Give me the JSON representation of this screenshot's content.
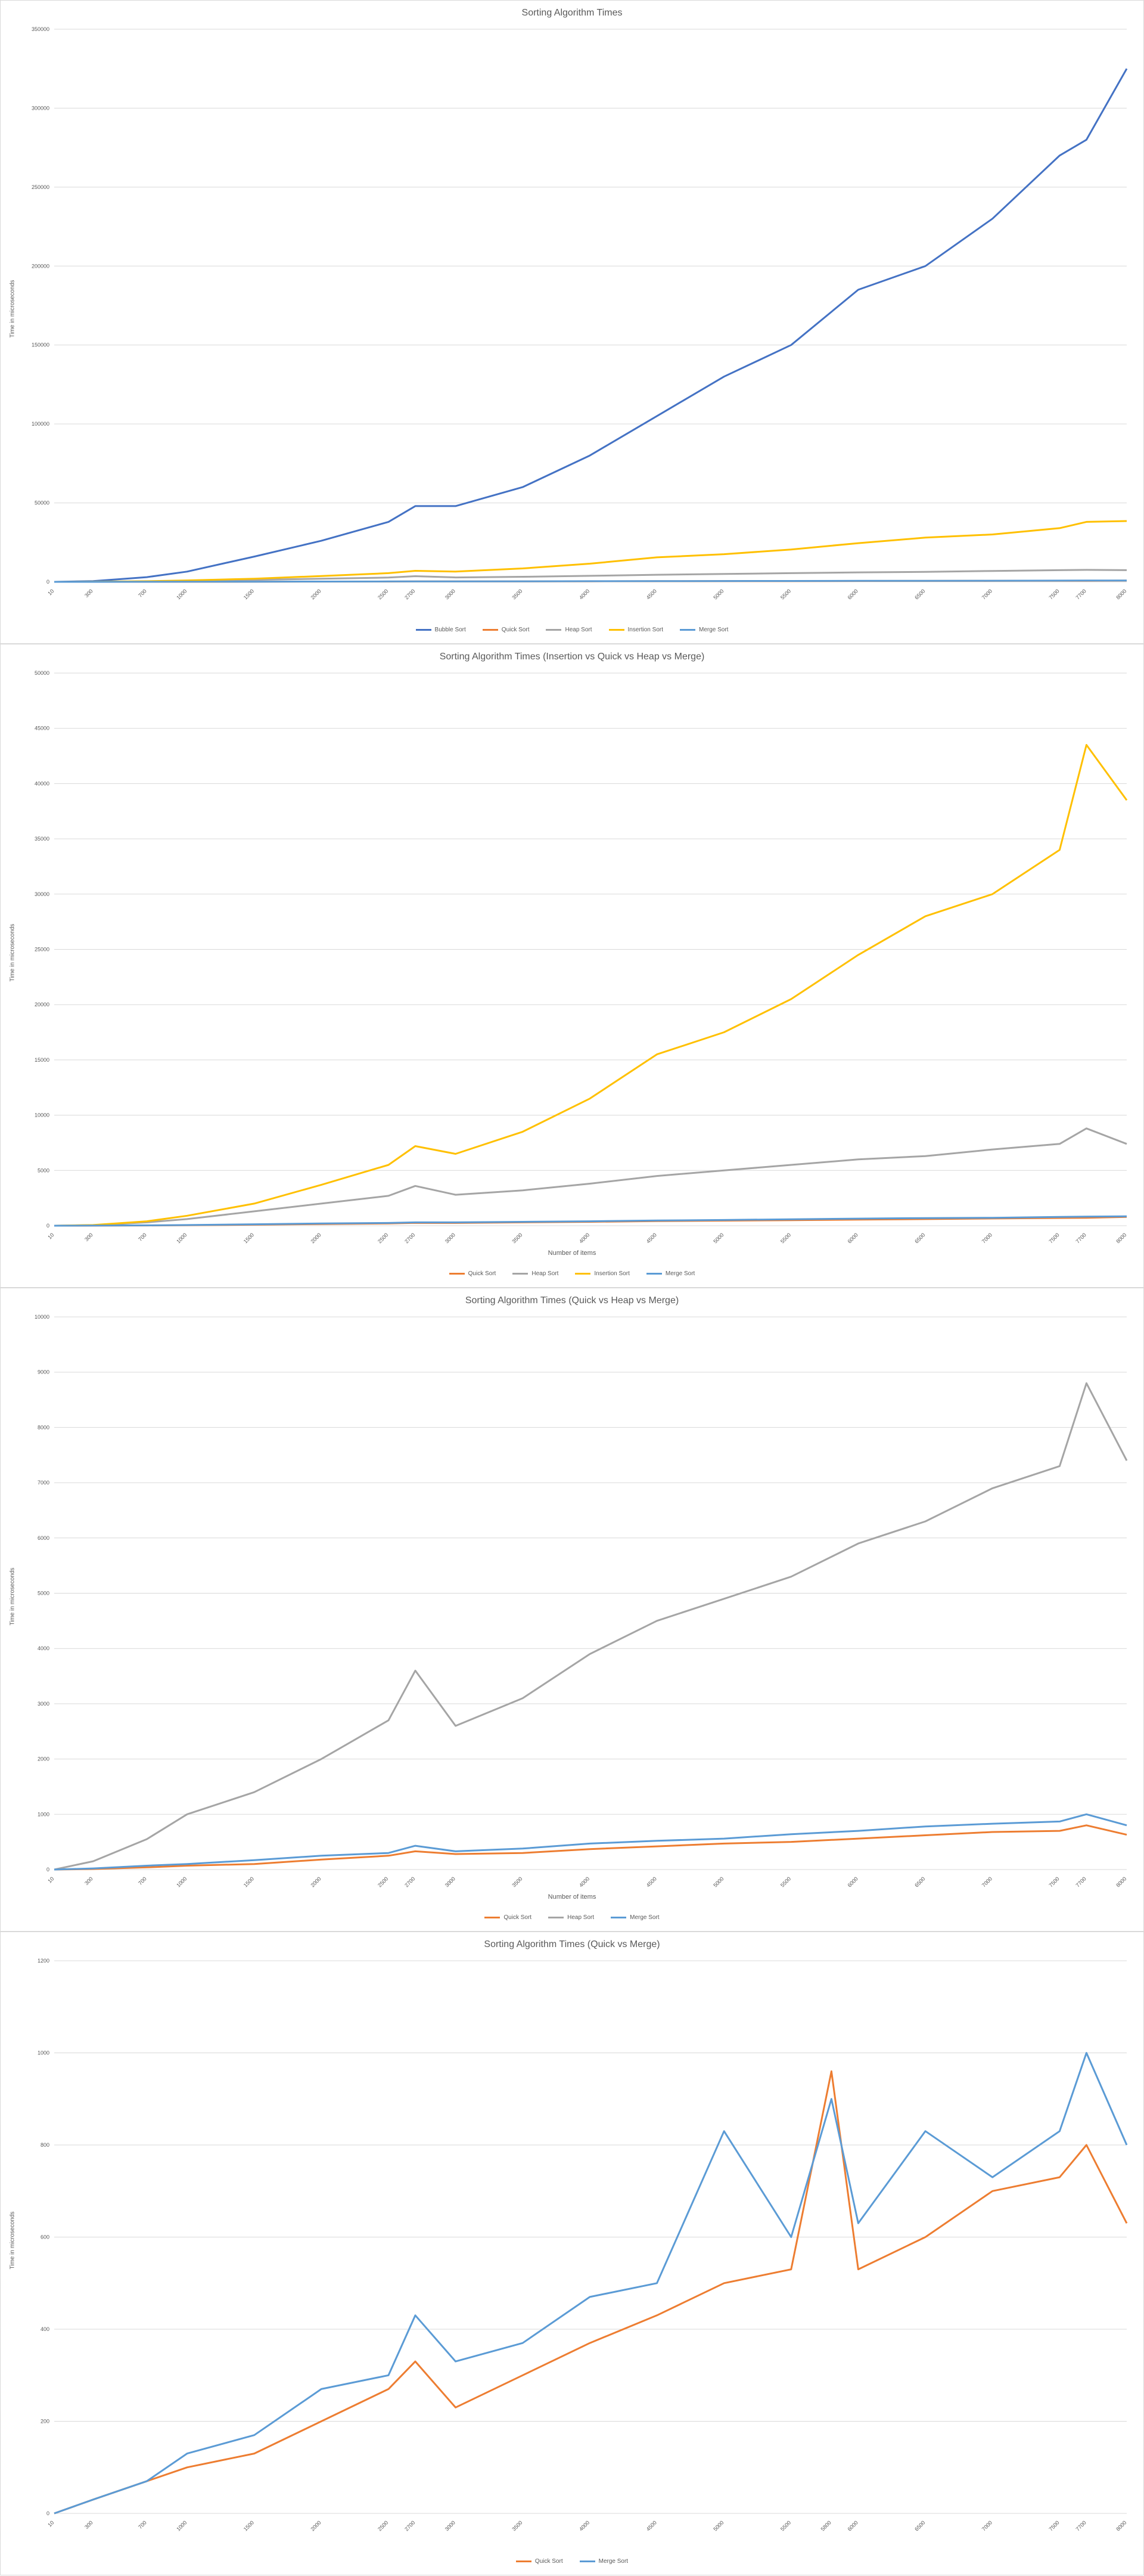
{
  "colors": {
    "bubble": "#4472c4",
    "quick": "#ed7d31",
    "heap": "#a5a5a5",
    "insertion": "#ffc000",
    "merge": "#5b9bd5",
    "grid": "#d9d9d9",
    "axis_text": "#595959"
  },
  "chart_data": [
    {
      "type": "line",
      "title": "Sorting Algorithm Times",
      "xlabel": "",
      "ylabel": "Time in microseconds",
      "ylim": [
        0,
        350000
      ],
      "yticks": [
        0,
        50000,
        100000,
        150000,
        200000,
        250000,
        300000,
        350000
      ],
      "x": [
        10,
        300,
        700,
        1000,
        1500,
        2000,
        2500,
        2700,
        3000,
        3500,
        4000,
        4500,
        5000,
        5500,
        6000,
        6500,
        7000,
        7500,
        7700,
        8000
      ],
      "series": [
        {
          "name": "Bubble Sort",
          "color_key": "bubble",
          "values": [
            0,
            500,
            3000,
            6500,
            16000,
            26000,
            38000,
            48000,
            48000,
            60000,
            80000,
            105000,
            130000,
            150000,
            185000,
            200000,
            230000,
            270000,
            280000,
            325000
          ]
        },
        {
          "name": "Quick Sort",
          "color_key": "quick",
          "values": [
            0,
            5,
            20,
            40,
            90,
            150,
            200,
            260,
            250,
            300,
            350,
            420,
            460,
            500,
            550,
            600,
            650,
            700,
            720,
            800
          ]
        },
        {
          "name": "Heap Sort",
          "color_key": "heap",
          "values": [
            0,
            50,
            300,
            600,
            1300,
            2000,
            2700,
            3600,
            2800,
            3200,
            3800,
            4500,
            5000,
            5500,
            6000,
            6300,
            6900,
            7400,
            7600,
            7400
          ]
        },
        {
          "name": "Insertion Sort",
          "color_key": "insertion",
          "values": [
            0,
            60,
            400,
            900,
            2000,
            3700,
            5500,
            7000,
            6500,
            8500,
            11500,
            15500,
            17500,
            20500,
            24500,
            28000,
            30000,
            34000,
            38000,
            38500
          ]
        },
        {
          "name": "Merge Sort",
          "color_key": "merge",
          "values": [
            0,
            10,
            30,
            60,
            130,
            200,
            250,
            300,
            300,
            350,
            400,
            470,
            520,
            580,
            640,
            690,
            720,
            800,
            820,
            850
          ]
        }
      ],
      "xlabels_shown": true
    },
    {
      "type": "line",
      "title": "Sorting Algorithm Times (Insertion vs Quick vs Heap vs Merge)",
      "xlabel": "Number of items",
      "ylabel": "Time in microseconds",
      "ylim": [
        0,
        50000
      ],
      "yticks": [
        0,
        5000,
        10000,
        15000,
        20000,
        25000,
        30000,
        35000,
        40000,
        45000,
        50000
      ],
      "x": [
        10,
        300,
        700,
        1000,
        1500,
        2000,
        2500,
        2700,
        3000,
        3500,
        4000,
        4500,
        5000,
        5500,
        6000,
        6500,
        7000,
        7500,
        7700,
        8000
      ],
      "series": [
        {
          "name": "Quick Sort",
          "color_key": "quick",
          "values": [
            0,
            5,
            20,
            40,
            90,
            150,
            200,
            260,
            250,
            300,
            350,
            420,
            460,
            500,
            550,
            600,
            650,
            700,
            720,
            800
          ]
        },
        {
          "name": "Heap Sort",
          "color_key": "heap",
          "values": [
            0,
            50,
            300,
            600,
            1300,
            2000,
            2700,
            3600,
            2800,
            3200,
            3800,
            4500,
            5000,
            5500,
            6000,
            6300,
            6900,
            7400,
            8800,
            7400
          ]
        },
        {
          "name": "Insertion Sort",
          "color_key": "insertion",
          "values": [
            0,
            60,
            400,
            900,
            2000,
            3700,
            5500,
            7200,
            6500,
            8500,
            11500,
            15500,
            17500,
            20500,
            24500,
            28000,
            30000,
            34000,
            43500,
            38500
          ]
        },
        {
          "name": "Merge Sort",
          "color_key": "merge",
          "values": [
            0,
            10,
            30,
            60,
            130,
            200,
            250,
            300,
            300,
            350,
            400,
            470,
            520,
            580,
            640,
            690,
            720,
            800,
            820,
            850
          ]
        }
      ]
    },
    {
      "type": "line",
      "title": "Sorting Algorithm Times (Quick vs Heap vs Merge)",
      "xlabel": "Number of items",
      "ylabel": "Time in microseconds",
      "ylim": [
        0,
        10000
      ],
      "yticks": [
        0,
        1000,
        2000,
        3000,
        4000,
        5000,
        6000,
        7000,
        8000,
        9000,
        10000
      ],
      "x": [
        10,
        300,
        700,
        1000,
        1500,
        2000,
        2500,
        2700,
        3000,
        3500,
        4000,
        4500,
        5000,
        5500,
        6000,
        6500,
        7000,
        7500,
        7700,
        8000
      ],
      "series": [
        {
          "name": "Quick Sort",
          "color_key": "quick",
          "values": [
            0,
            10,
            40,
            70,
            100,
            180,
            250,
            330,
            280,
            300,
            370,
            420,
            470,
            500,
            560,
            620,
            680,
            700,
            800,
            630
          ]
        },
        {
          "name": "Heap Sort",
          "color_key": "heap",
          "values": [
            0,
            150,
            550,
            1000,
            1400,
            2000,
            2700,
            3600,
            2600,
            3100,
            3900,
            4500,
            4900,
            5300,
            5900,
            6300,
            6900,
            7300,
            8800,
            7400
          ]
        },
        {
          "name": "Merge Sort",
          "color_key": "merge",
          "values": [
            0,
            20,
            70,
            100,
            170,
            250,
            300,
            430,
            330,
            380,
            470,
            520,
            560,
            640,
            700,
            780,
            830,
            870,
            1000,
            800
          ]
        }
      ]
    },
    {
      "type": "line",
      "title": "Sorting Algorithm Times (Quick vs Merge)",
      "xlabel": "",
      "ylabel": "Time in microseconds",
      "ylim": [
        0,
        1200
      ],
      "yticks": [
        0,
        200,
        400,
        600,
        800,
        1000,
        1200
      ],
      "x": [
        10,
        300,
        700,
        1000,
        1500,
        2000,
        2500,
        2700,
        3000,
        3500,
        4000,
        4500,
        5000,
        5500,
        5800,
        6000,
        6500,
        7000,
        7500,
        7700,
        8000
      ],
      "series": [
        {
          "name": "Quick Sort",
          "color_key": "quick",
          "values": [
            0,
            30,
            70,
            100,
            130,
            200,
            270,
            330,
            230,
            300,
            370,
            430,
            500,
            530,
            960,
            530,
            600,
            700,
            730,
            800,
            630
          ]
        },
        {
          "name": "Merge Sort",
          "color_key": "merge",
          "values": [
            0,
            30,
            70,
            130,
            170,
            270,
            300,
            430,
            330,
            370,
            470,
            500,
            830,
            600,
            900,
            630,
            830,
            730,
            830,
            1000,
            800
          ]
        }
      ]
    }
  ]
}
